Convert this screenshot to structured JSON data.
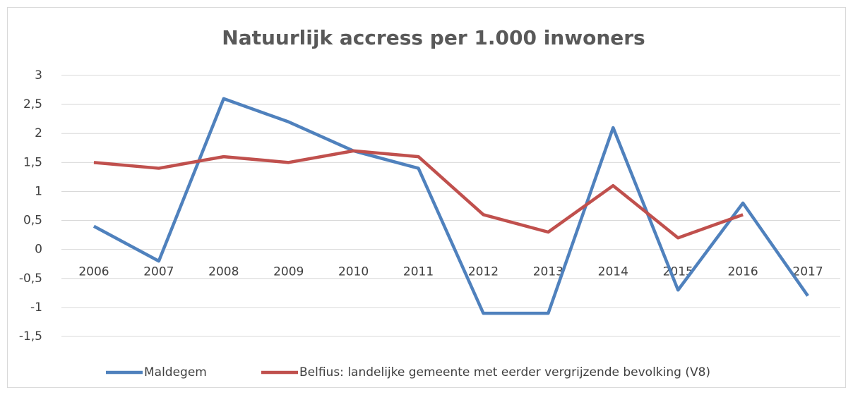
{
  "chart_data": {
    "type": "line",
    "title": "Natuurlijk accress per 1.000 inwoners",
    "categories": [
      "2006",
      "2007",
      "2008",
      "2009",
      "2010",
      "2011",
      "2012",
      "2013",
      "2014",
      "2015",
      "2016",
      "2017"
    ],
    "series": [
      {
        "name": "Maldegem",
        "color": "#4f81bd",
        "values": [
          0.4,
          -0.2,
          2.6,
          2.2,
          1.7,
          1.4,
          -1.1,
          -1.1,
          2.1,
          -0.7,
          0.8,
          -0.8
        ]
      },
      {
        "name": "Belfius: landelijke gemeente met eerder vergrijzende bevolking (V8)",
        "color": "#c0504d",
        "values": [
          1.5,
          1.4,
          1.6,
          1.5,
          1.7,
          1.6,
          0.6,
          0.3,
          1.1,
          0.2,
          0.6,
          null
        ]
      }
    ],
    "ylim": [
      -1.5,
      3
    ],
    "yticks": [
      {
        "value": -1.5,
        "label": "-1,5"
      },
      -1,
      {
        "value": -0.5,
        "label": "-0,5"
      },
      0,
      {
        "value": 0.5,
        "label": "0,5"
      },
      1,
      {
        "value": 1.5,
        "label": "1,5"
      },
      2,
      {
        "value": 2.5,
        "label": "2,5"
      },
      3
    ],
    "grid": true,
    "legend": "bottom"
  }
}
